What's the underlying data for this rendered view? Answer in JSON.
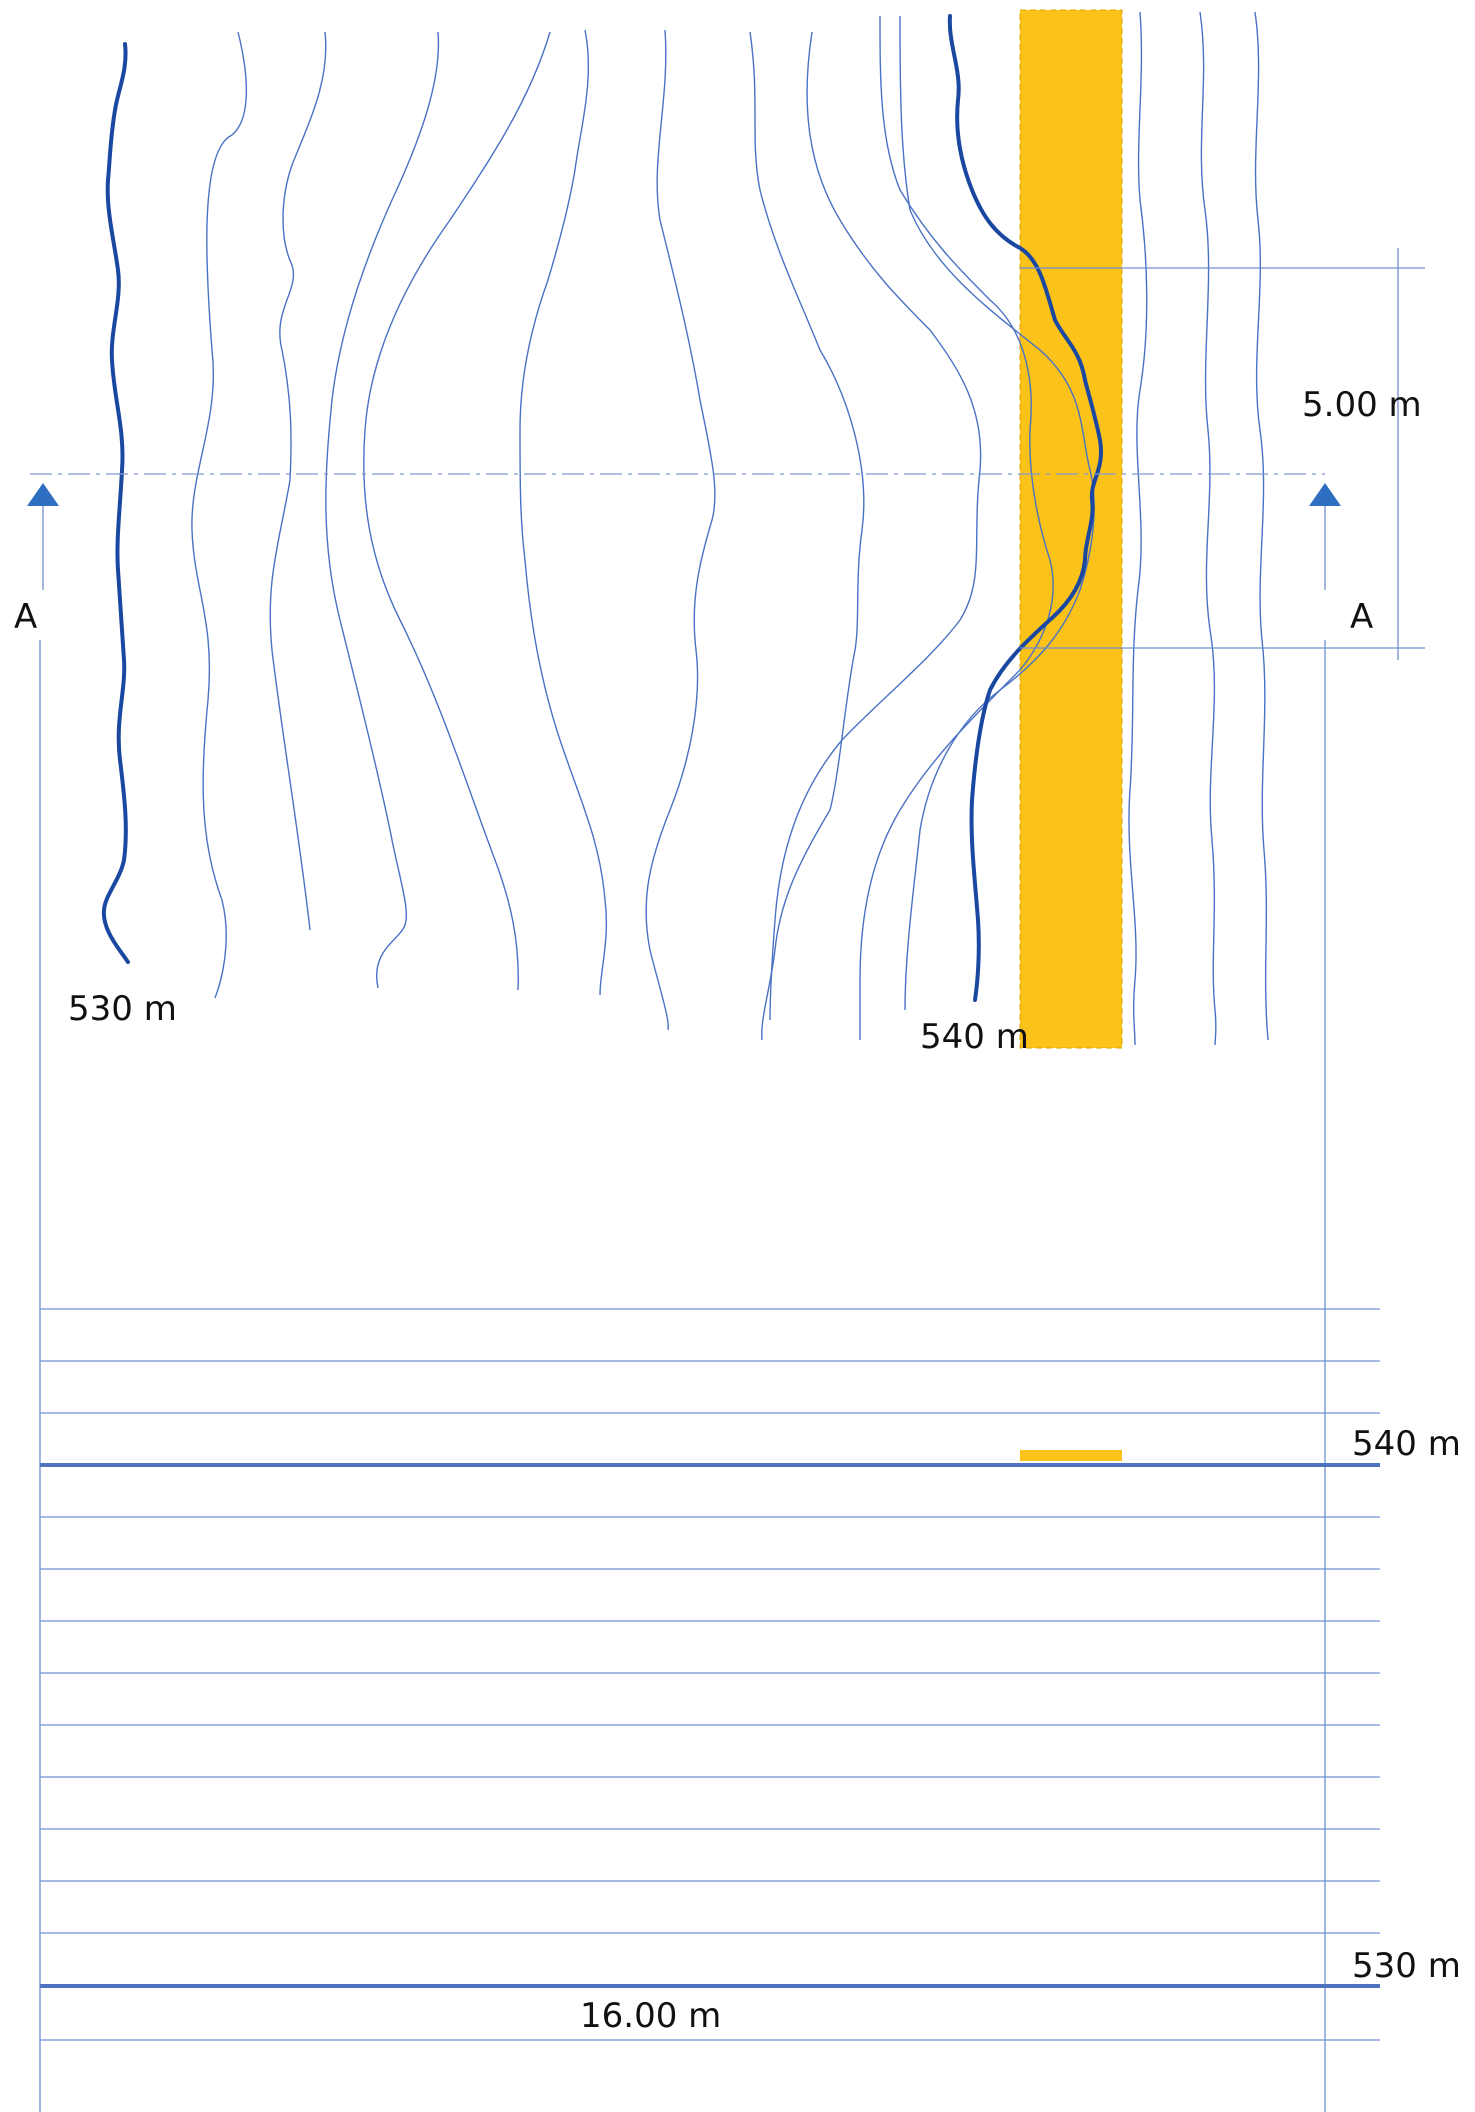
{
  "plan": {
    "contour_label_low": "530 m",
    "contour_label_high": "540 m",
    "dimension_width": "5.00 m"
  },
  "section": {
    "marker_left": "A",
    "marker_right": "A",
    "level_high": "540 m",
    "level_low": "530 m",
    "dimension_length": "16.00 m"
  },
  "colors": {
    "contour": "#4a72c4",
    "index_contour": "#1a47a0",
    "path": "#fbc21a",
    "marker": "#2f6fc2"
  }
}
